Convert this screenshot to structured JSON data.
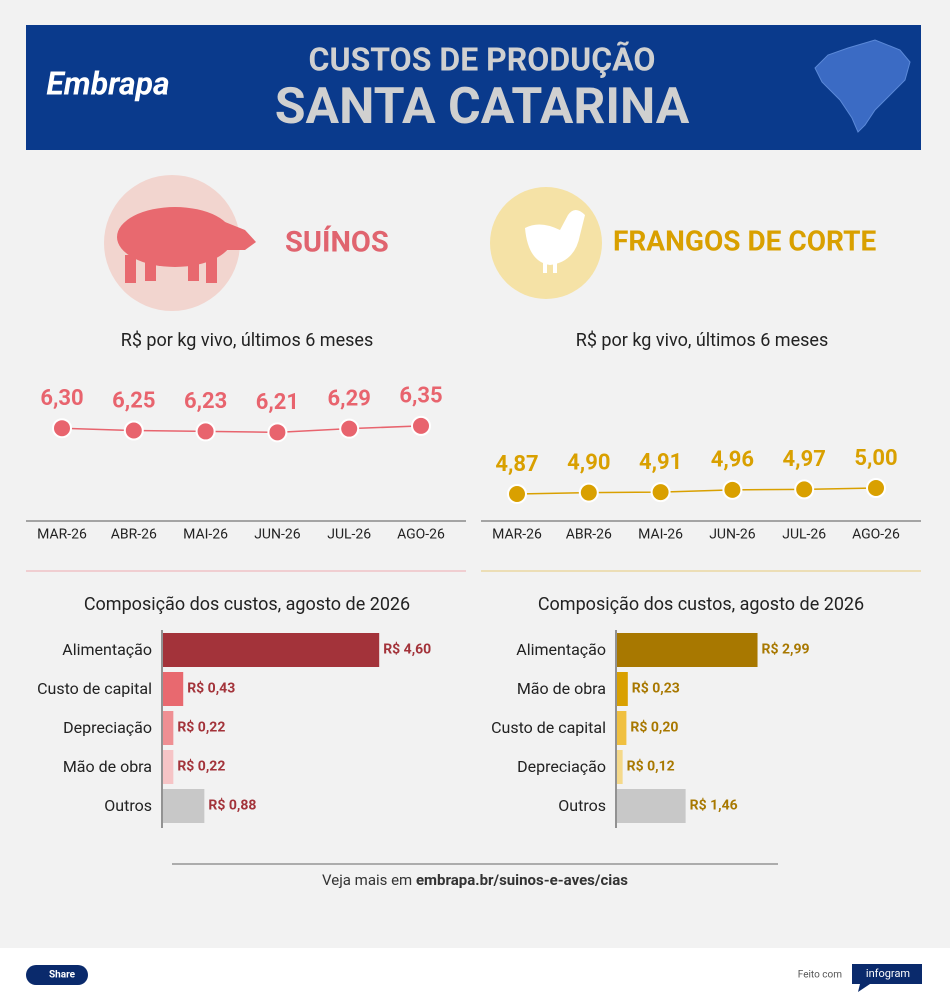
{
  "header": {
    "logo": "Embrapa",
    "title": "CUSTOS DE PRODUÇÃO",
    "subtitle": "SANTA CATARINA"
  },
  "sections": [
    {
      "title": "SUÍNOS",
      "color": "#e0646f"
    },
    {
      "title": "FRANGOS DE CORTE",
      "color": "#d9a000"
    }
  ],
  "chart_data": [
    {
      "type": "line",
      "subtitle": "R$ por kg vivo, últimos 6 meses",
      "categories": [
        "MAR-26",
        "ABR-26",
        "MAI-26",
        "JUN-26",
        "JUL-26",
        "AGO-26"
      ],
      "values": [
        6.3,
        6.25,
        6.23,
        6.21,
        6.29,
        6.35
      ],
      "value_labels": [
        "6,30",
        "6,25",
        "6,23",
        "6,21",
        "6,29",
        "6,35"
      ],
      "color": "#e8646e"
    },
    {
      "type": "line",
      "subtitle": "R$ por kg vivo, últimos 6 meses",
      "categories": [
        "MAR-26",
        "ABR-26",
        "MAI-26",
        "JUN-26",
        "JUL-26",
        "AGO-26"
      ],
      "values": [
        4.87,
        4.9,
        4.91,
        4.96,
        4.97,
        5.0
      ],
      "value_labels": [
        "4,87",
        "4,90",
        "4,91",
        "4,96",
        "4,97",
        "5,00"
      ],
      "color": "#d9a000"
    },
    {
      "type": "bar",
      "subtitle": "Composição dos custos, agosto de 2026",
      "categories": [
        "Alimentação",
        "Custo de capital",
        "Depreciação",
        "Mão de obra",
        "Outros"
      ],
      "values": [
        4.6,
        0.43,
        0.22,
        0.22,
        0.88
      ],
      "value_labels": [
        "R$ 4,60",
        "R$ 0,43",
        "R$ 0,22",
        "R$ 0,22",
        "R$ 0,88"
      ],
      "colors": [
        "#a3333a",
        "#e8696f",
        "#ef8f93",
        "#f6c4c6",
        "#c8c8c8"
      ],
      "label_color": "#a3333a"
    },
    {
      "type": "bar",
      "subtitle": "Composição dos custos, agosto de 2026",
      "categories": [
        "Alimentação",
        "Mão de obra",
        "Custo de capital",
        "Depreciação",
        "Outros"
      ],
      "values": [
        2.99,
        0.23,
        0.2,
        0.12,
        1.46
      ],
      "value_labels": [
        "R$ 2,99",
        "R$ 0,23",
        "R$ 0,20",
        "R$ 0,12",
        "R$ 1,46"
      ],
      "colors": [
        "#a87800",
        "#d9a000",
        "#f0c040",
        "#f5d98a",
        "#c8c8c8"
      ],
      "label_color": "#a87800"
    }
  ],
  "footer": {
    "text": "Veja mais em",
    "link": "embrapa.br/suinos-e-aves/cias",
    "share": "Share",
    "made_with": "Feito com",
    "brand": "infogram"
  }
}
